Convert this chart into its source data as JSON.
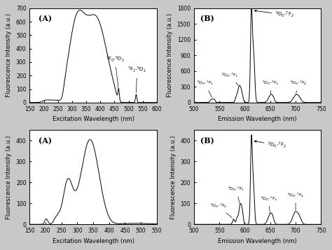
{
  "fig_bg": "#c8c8c8",
  "panel_bg": "#ffffff",
  "top_left": {
    "label": "(A)",
    "xlabel": "Excitation Wavelength (nm)",
    "ylabel": "Fluorescence Intensity (a.u.)",
    "xlim": [
      150,
      600
    ],
    "ylim": [
      0,
      700
    ],
    "xticks": [
      150,
      200,
      250,
      300,
      350,
      400,
      450,
      500,
      550,
      600
    ],
    "yticks": [
      0,
      100,
      200,
      300,
      400,
      500,
      600,
      700
    ]
  },
  "top_right": {
    "label": "(B)",
    "xlabel": "Emission Wavelength (nm)",
    "ylabel": "Fluorescence Intensity (a.u.)",
    "xlim": [
      500,
      750
    ],
    "ylim": [
      0,
      1800
    ],
    "xticks": [
      500,
      550,
      600,
      650,
      700,
      750
    ],
    "yticks": [
      0,
      300,
      600,
      900,
      1200,
      1500,
      1800
    ]
  },
  "bot_left": {
    "label": "(A)",
    "xlabel": "Excitation Wavelength (nm)",
    "ylabel": "Fluorescence Intensity (a.u.)",
    "xlim": [
      150,
      550
    ],
    "ylim": [
      0,
      450
    ],
    "xticks": [
      150,
      200,
      250,
      300,
      350,
      400,
      450,
      500,
      550
    ],
    "yticks": [
      0,
      100,
      200,
      300,
      400
    ]
  },
  "bot_right": {
    "label": "(B)",
    "xlabel": "Emission Wavelength (nm)",
    "ylabel": "Fluorescence Intensity (a.u.)",
    "xlim": [
      500,
      750
    ],
    "ylim": [
      0,
      450
    ],
    "xticks": [
      500,
      550,
      600,
      650,
      700,
      750
    ],
    "yticks": [
      0,
      100,
      200,
      300,
      400
    ]
  }
}
